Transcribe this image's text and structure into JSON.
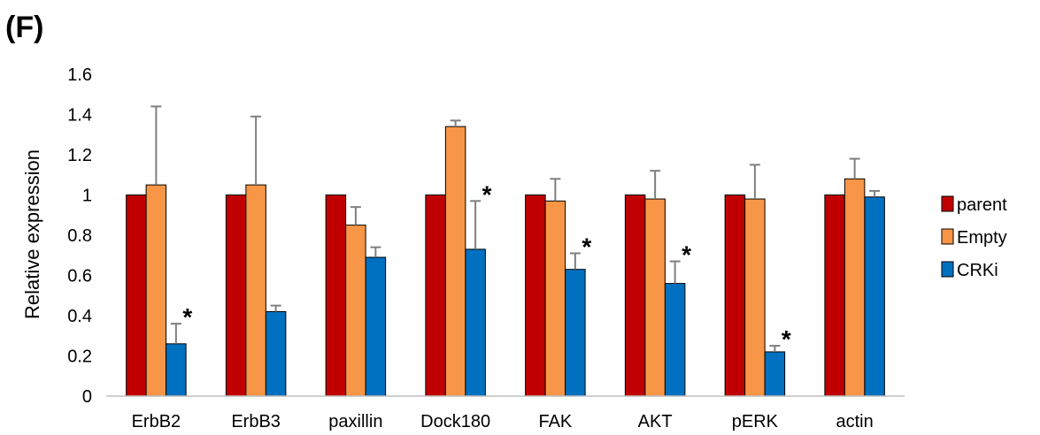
{
  "panel_label": "(F)",
  "chart_data": {
    "type": "bar",
    "title": "",
    "xlabel": "",
    "ylabel": "Relative expression",
    "ylim": [
      0,
      1.6
    ],
    "yticks": [
      "0",
      "0.2",
      "0.4",
      "0.6",
      "0.8",
      "1",
      "1.2",
      "1.4",
      "1.6"
    ],
    "categories": [
      "ErbB2",
      "ErbB3",
      "paxillin",
      "Dock180",
      "FAK",
      "AKT",
      "pERK",
      "actin"
    ],
    "series": [
      {
        "name": "parent",
        "color": "#C00000",
        "values": [
          1,
          1,
          1,
          1,
          1,
          1,
          1,
          1
        ],
        "errors": [
          0,
          0,
          0,
          0,
          0,
          0,
          0,
          0
        ]
      },
      {
        "name": "Empty",
        "color": "#F79646",
        "values": [
          1.05,
          1.05,
          0.85,
          1.34,
          0.97,
          0.98,
          0.98,
          1.08
        ],
        "errors": [
          0.39,
          0.34,
          0.09,
          0.03,
          0.11,
          0.14,
          0.17,
          0.1
        ]
      },
      {
        "name": "CRKi",
        "color": "#0070C0",
        "values": [
          0.26,
          0.42,
          0.69,
          0.73,
          0.63,
          0.56,
          0.22,
          0.99
        ],
        "errors": [
          0.1,
          0.03,
          0.05,
          0.24,
          0.08,
          0.11,
          0.03,
          0.03
        ]
      }
    ],
    "significance": [
      {
        "category": "ErbB2",
        "series": "CRKi",
        "mark": "*"
      },
      {
        "category": "Dock180",
        "series": "CRKi",
        "mark": "*"
      },
      {
        "category": "FAK",
        "series": "CRKi",
        "mark": "*"
      },
      {
        "category": "AKT",
        "series": "CRKi",
        "mark": "*"
      },
      {
        "category": "pERK",
        "series": "CRKi",
        "mark": "*"
      }
    ],
    "grid": false,
    "legend_position": "right"
  }
}
